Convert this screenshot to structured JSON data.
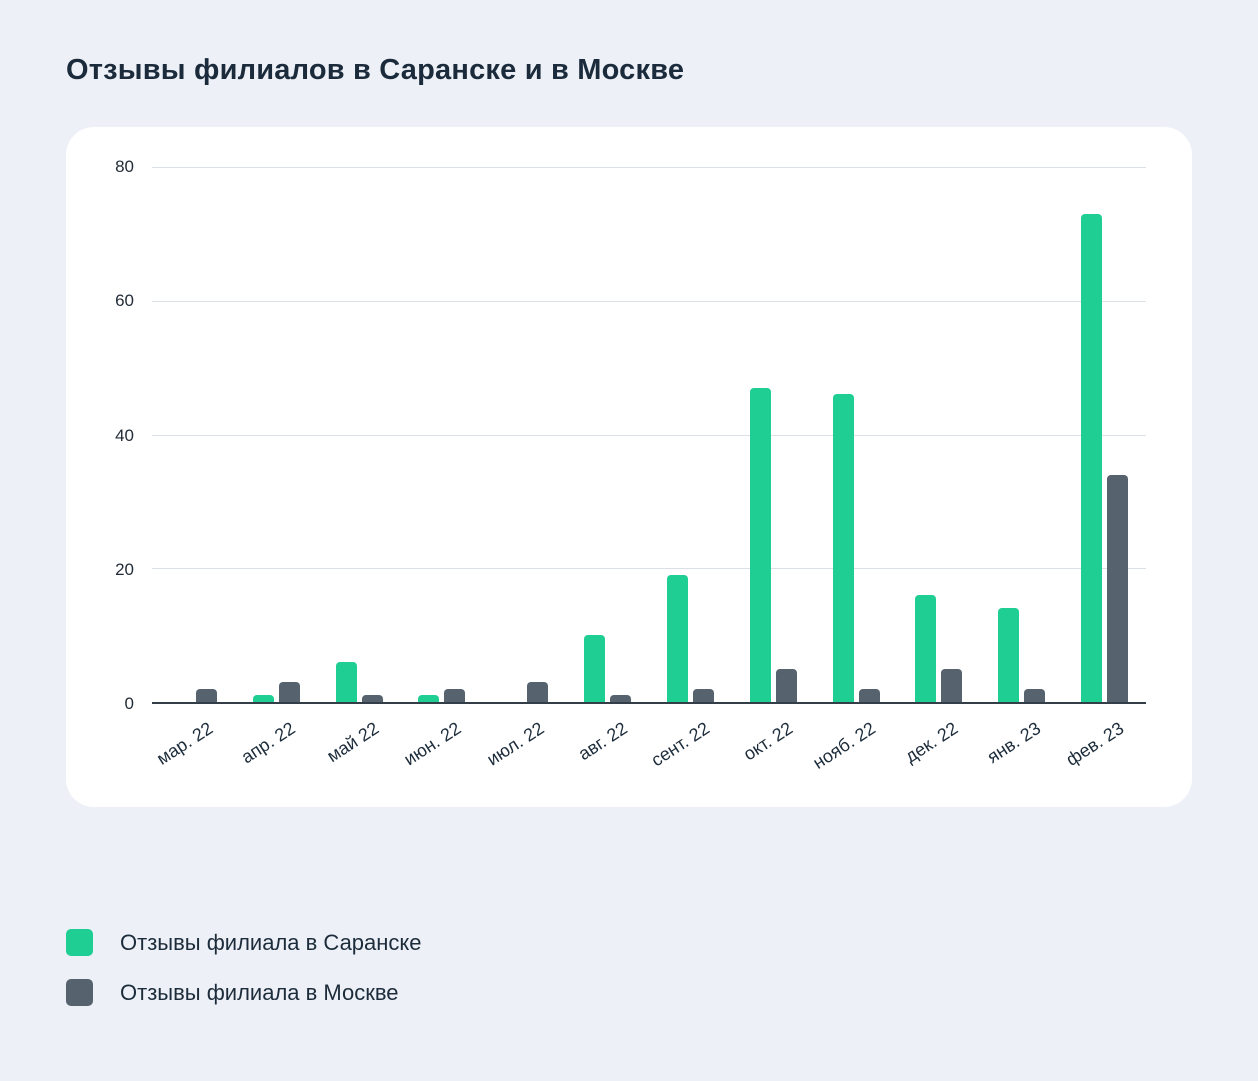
{
  "page": {
    "title": "Отзывы филиалов в Саранске и в Москве"
  },
  "chart_data": {
    "type": "bar",
    "title": "Отзывы филиалов в Саранске и в Москве",
    "categories": [
      "мар. 22",
      "апр. 22",
      "май 22",
      "июн. 22",
      "июл. 22",
      "авг. 22",
      "сент. 22",
      "окт. 22",
      "нояб. 22",
      "дек. 22",
      "янв. 23",
      "фев. 23"
    ],
    "series": [
      {
        "name": "Отзывы филиала в Саранске",
        "color": "#1ece92",
        "values": [
          0,
          1,
          6,
          1,
          0,
          10,
          19,
          47,
          46,
          16,
          14,
          73
        ]
      },
      {
        "name": "Отзывы филиала в Москве",
        "color": "#56626e",
        "values": [
          2,
          3,
          1,
          2,
          3,
          1,
          2,
          5,
          2,
          5,
          2,
          34
        ]
      }
    ],
    "ylim": [
      0,
      80
    ],
    "yticks": [
      0,
      20,
      40,
      60,
      80
    ],
    "grid": true,
    "legend_position": "bottom-left"
  },
  "legend": {
    "items": [
      {
        "label": "Отзывы филиала в Саранске",
        "color": "#1ece92"
      },
      {
        "label": "Отзывы филиала в Москве",
        "color": "#56626e"
      }
    ]
  }
}
